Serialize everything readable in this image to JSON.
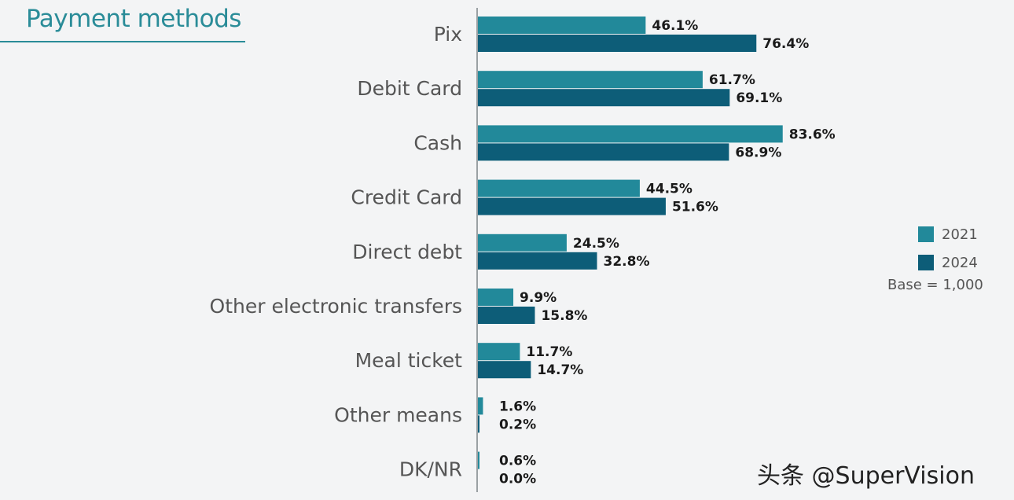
{
  "chart_data": {
    "type": "bar",
    "orientation": "horizontal",
    "title": "Payment methods",
    "categories": [
      "Pix",
      "Debit Card",
      "Cash",
      "Credit Card",
      "Direct debt",
      "Other electronic transfers",
      "Meal ticket",
      "Other means",
      "DK/NR"
    ],
    "series": [
      {
        "name": "2021",
        "color": "#22899a",
        "values": [
          46.1,
          61.7,
          83.6,
          44.5,
          24.5,
          9.9,
          11.7,
          1.6,
          0.6
        ],
        "labels": [
          "46.1%",
          "61.7%",
          "83.6%",
          "44.5%",
          "24.5%",
          "9.9%",
          "11.7%",
          "1.6%",
          "0.6%"
        ]
      },
      {
        "name": "2024",
        "color": "#0d5d78",
        "values": [
          76.4,
          69.1,
          68.9,
          51.6,
          32.8,
          15.8,
          14.7,
          0.2,
          0.0
        ],
        "labels": [
          "76.4%",
          "69.1%",
          "68.9%",
          "51.6%",
          "32.8%",
          "15.8%",
          "14.7%",
          "0.2%",
          "0.0%"
        ]
      }
    ],
    "legend_position": "right",
    "note": "Base = 1,000",
    "grid": false
  },
  "watermark": "头条 @SuperVision"
}
